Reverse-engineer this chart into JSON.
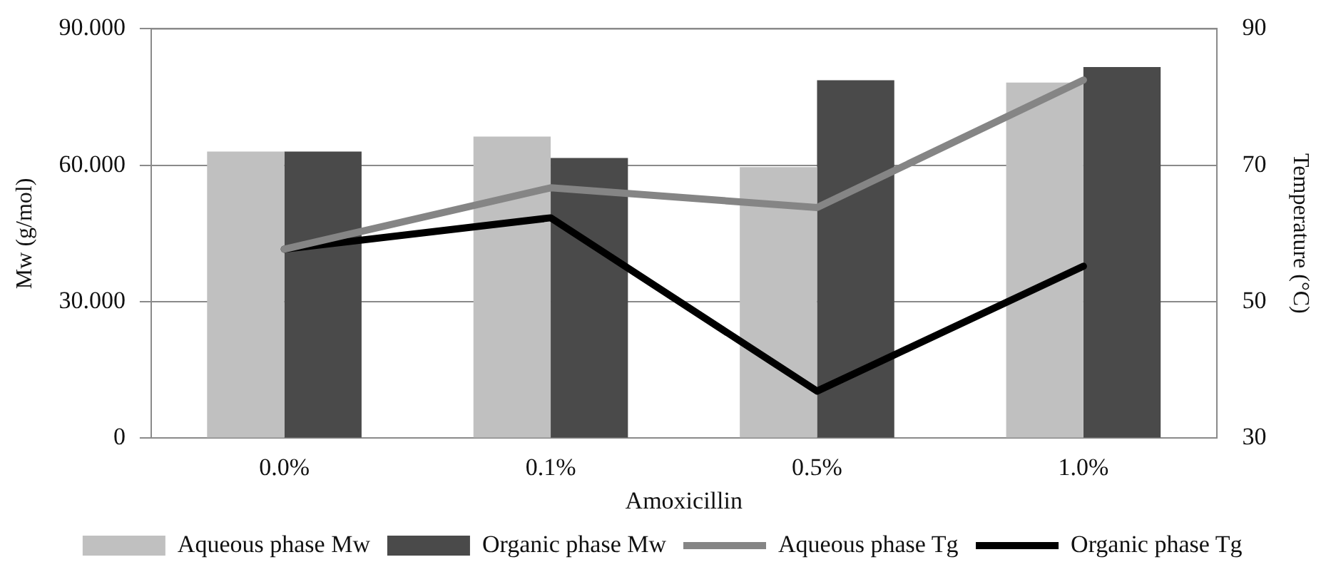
{
  "chart_data": {
    "type": "bar",
    "xlabel": "Amoxicillin",
    "ylabel": "Mw (g/mol)",
    "y2label": "Temperature (°C)",
    "categories": [
      "0.0%",
      "0.1%",
      "0.5%",
      "1.0%"
    ],
    "series": [
      {
        "name": "Aqueous phase Mw",
        "color": "#c0c0c0",
        "values": [
          63.0,
          66.3,
          59.6,
          78.2
        ]
      },
      {
        "name": "Organic phase Mw",
        "color": "#4a4a4a",
        "values": [
          63.0,
          61.6,
          78.7,
          81.6
        ]
      },
      {
        "name": "Aqueous phase Tg",
        "type": "line",
        "axis": "y2",
        "color": "#858585",
        "values": [
          57.7,
          66.7,
          63.8,
          82.5
        ]
      },
      {
        "name": "Organic phase Tg",
        "type": "line",
        "axis": "y2",
        "color": "#000000",
        "values": [
          57.7,
          62.3,
          36.9,
          55.2
        ]
      }
    ],
    "ylim": [
      0,
      90
    ],
    "yticks": [
      0,
      {
        "value": 30,
        "label": "30.000"
      },
      {
        "value": 60,
        "label": "60.000"
      },
      {
        "value": 90,
        "label": "90.000"
      }
    ],
    "y2lim": [
      30,
      90
    ],
    "y2ticks": [
      30,
      50,
      70,
      90
    ],
    "grid": "y",
    "legend": "bottom",
    "marker": "none"
  }
}
